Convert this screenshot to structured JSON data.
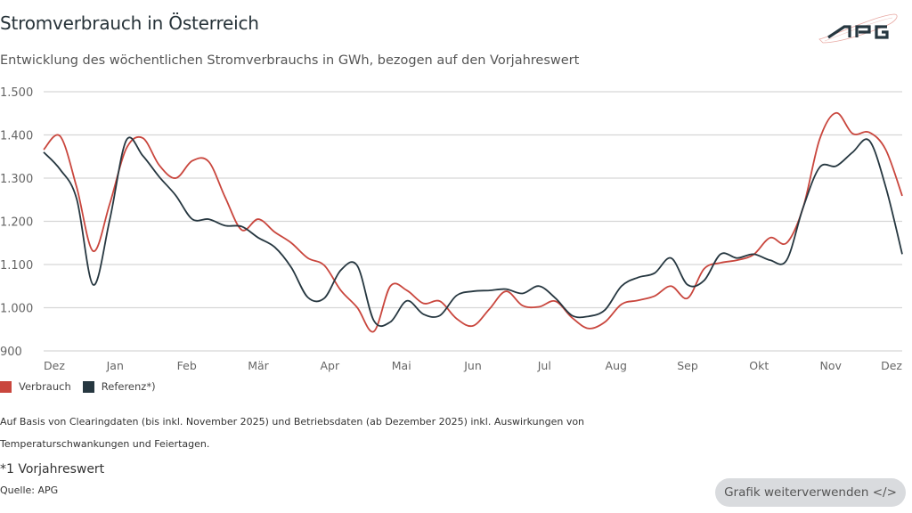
{
  "header": {
    "title": "Stromverbrauch in Österreich",
    "subtitle": "Entwicklung des wöchentlichen Stromverbrauchs in GWh, bezogen auf den Vorjahreswert",
    "logo_text": "APG"
  },
  "chart_data": {
    "type": "line",
    "title": "Stromverbrauch in Österreich",
    "ylabel": "GWh",
    "ylim": [
      900,
      1500
    ],
    "yticks": [
      "1.500",
      "1.400",
      "1.300",
      "1.200",
      "1.100",
      "1.000",
      "900"
    ],
    "ytick_values": [
      1500,
      1400,
      1300,
      1200,
      1100,
      1000,
      900
    ],
    "x_unit": "week",
    "xlim": [
      0,
      52
    ],
    "xticks": [
      "Dez",
      "Jan",
      "Feb",
      "Mär",
      "Apr",
      "Mai",
      "Jun",
      "Jul",
      "Aug",
      "Sep",
      "Okt",
      "Nov",
      "Dez"
    ],
    "xtick_weeks": [
      0,
      4.33,
      8.67,
      13,
      17.33,
      21.67,
      26,
      30.33,
      34.67,
      39,
      43.33,
      47.67,
      51.5
    ],
    "grid": true,
    "legend_position": "bottom-left",
    "series": [
      {
        "name": "Verbrauch",
        "color": "#c9463d",
        "values": [
          1366,
          1397,
          1279,
          1131,
          1240,
          1368,
          1393,
          1330,
          1300,
          1340,
          1338,
          1255,
          1180,
          1205,
          1175,
          1150,
          1115,
          1098,
          1040,
          1000,
          945,
          1050,
          1040,
          1010,
          1015,
          975,
          958,
          997,
          1038,
          1005,
          1002,
          1015,
          977,
          952,
          967,
          1008,
          1017,
          1027,
          1050,
          1022,
          1090,
          1104,
          1110,
          1123,
          1162,
          1150,
          1232,
          1390,
          1451,
          1403,
          1406,
          1366,
          1259
        ]
      },
      {
        "name": "Referenz*)",
        "color": "#263740",
        "values": [
          1360,
          1320,
          1252,
          1053,
          1203,
          1387,
          1352,
          1303,
          1260,
          1205,
          1205,
          1190,
          1188,
          1162,
          1140,
          1093,
          1024,
          1022,
          1087,
          1097,
          970,
          967,
          1016,
          985,
          982,
          1028,
          1038,
          1040,
          1043,
          1033,
          1050,
          1022,
          982,
          980,
          995,
          1050,
          1070,
          1080,
          1115,
          1053,
          1063,
          1124,
          1115,
          1124,
          1110,
          1110,
          1232,
          1325,
          1328,
          1360,
          1387,
          1280,
          1124
        ]
      }
    ]
  },
  "notes": {
    "line1": "Auf Basis von Clearingdaten (bis inkl. November 2025) und Betriebsdaten (ab Dezember 2025) inkl. Auswirkungen von",
    "line2": "Temperaturschwankungen und Feiertagen.",
    "footnote": "*1 Vorjahreswert",
    "source": "Quelle: APG"
  },
  "button": {
    "label": "Grafik weiterverwenden </>"
  }
}
